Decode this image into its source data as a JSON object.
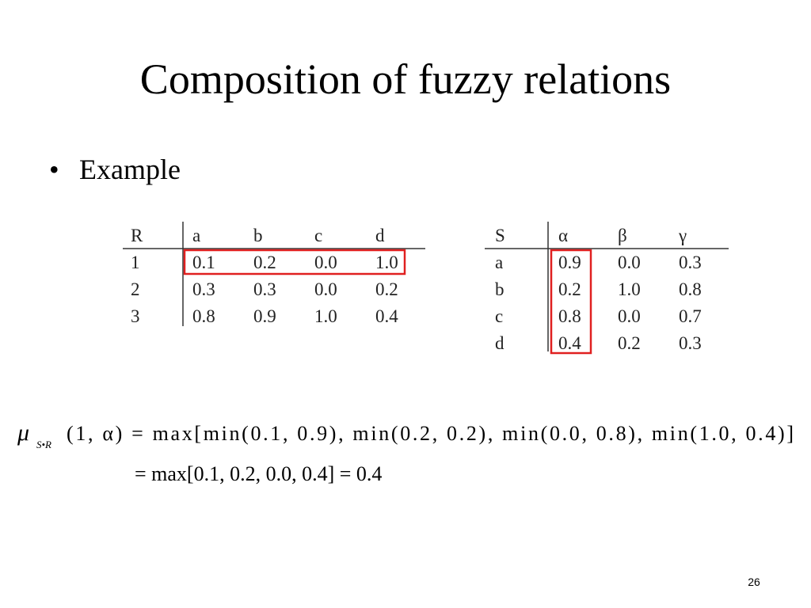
{
  "title": "Composition of fuzzy relations",
  "bullet": "Example",
  "table_r": {
    "header": [
      "R",
      "a",
      "b",
      "c",
      "d"
    ],
    "rows": [
      [
        "1",
        "0.1",
        "0.2",
        "0.0",
        "1.0"
      ],
      [
        "2",
        "0.3",
        "0.3",
        "0.0",
        "0.2"
      ],
      [
        "3",
        "0.8",
        "0.9",
        "1.0",
        "0.4"
      ]
    ]
  },
  "table_s": {
    "header": [
      "S",
      "α",
      "β",
      "γ"
    ],
    "rows": [
      [
        "a",
        "0.9",
        "0.0",
        "0.3"
      ],
      [
        "b",
        "0.2",
        "1.0",
        "0.8"
      ],
      [
        "c",
        "0.8",
        "0.0",
        "0.7"
      ],
      [
        "d",
        "0.4",
        "0.2",
        "0.3"
      ]
    ]
  },
  "formula": {
    "symbol": "μ",
    "subscript": "S•R",
    "line1": "(1,  α) = max[min(0.1, 0.9), min(0.2, 0.2), min(0.0, 0.8), min(1.0, 0.4)]",
    "line2": "= max[0.1, 0.2, 0.0, 0.4] = 0.4"
  },
  "page_number": "26"
}
